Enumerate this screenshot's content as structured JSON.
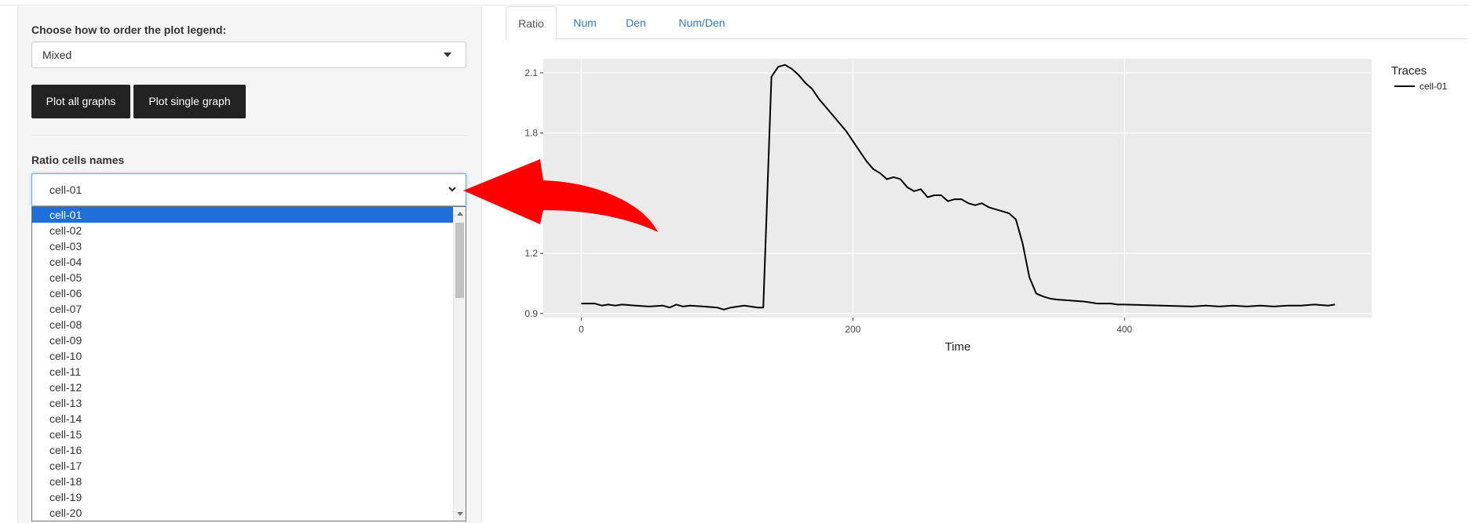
{
  "sidebar": {
    "legend_order_label": "Choose how to order the plot legend:",
    "legend_order_value": "Mixed",
    "plot_all_label": "Plot all graphs",
    "plot_single_label": "Plot single graph",
    "cells_label": "Ratio cells names",
    "cells_selected": "cell-01",
    "cells_options": [
      "cell-01",
      "cell-02",
      "cell-03",
      "cell-04",
      "cell-05",
      "cell-06",
      "cell-07",
      "cell-08",
      "cell-09",
      "cell-10",
      "cell-11",
      "cell-12",
      "cell-13",
      "cell-14",
      "cell-15",
      "cell-16",
      "cell-17",
      "cell-18",
      "cell-19",
      "cell-20"
    ]
  },
  "tabs": [
    {
      "label": "Ratio",
      "active": true
    },
    {
      "label": "Num",
      "active": false
    },
    {
      "label": "Den",
      "active": false
    },
    {
      "label": "Num/Den",
      "active": false
    }
  ],
  "annotation": {
    "arrow_color": "#ff0000",
    "icon": "red-curved-arrow-icon"
  },
  "chart_data": {
    "type": "line",
    "xlabel": "Time",
    "ylabel": "",
    "xlim": [
      -28,
      582
    ],
    "ylim": [
      0.88,
      2.17
    ],
    "xticks": [
      0,
      200,
      400
    ],
    "yticks": [
      0.9,
      1.2,
      1.8,
      2.1
    ],
    "ytick_labels": [
      "0.9",
      "1.2",
      "1.8",
      "2.1"
    ],
    "grid": true,
    "legend": {
      "title": "Traces",
      "placement": "right"
    },
    "series": [
      {
        "name": "cell-01",
        "color": "#000000",
        "x": [
          0,
          10,
          15,
          20,
          25,
          30,
          40,
          50,
          60,
          65,
          70,
          75,
          80,
          90,
          100,
          105,
          110,
          120,
          130,
          134,
          140,
          145,
          150,
          155,
          160,
          165,
          170,
          175,
          180,
          185,
          190,
          195,
          200,
          210,
          215,
          220,
          225,
          230,
          235,
          240,
          245,
          250,
          255,
          260,
          265,
          270,
          275,
          280,
          285,
          290,
          295,
          300,
          305,
          310,
          315,
          320,
          325,
          330,
          335,
          340,
          345,
          350,
          360,
          370,
          375,
          380,
          390,
          395,
          400,
          450,
          460,
          470,
          480,
          490,
          500,
          510,
          520,
          530,
          540,
          550,
          555
        ],
        "y": [
          0.95,
          0.95,
          0.94,
          0.945,
          0.94,
          0.945,
          0.94,
          0.935,
          0.94,
          0.93,
          0.945,
          0.935,
          0.94,
          0.935,
          0.93,
          0.92,
          0.93,
          0.94,
          0.93,
          0.93,
          2.08,
          2.13,
          2.14,
          2.12,
          2.09,
          2.05,
          2.02,
          1.97,
          1.93,
          1.89,
          1.85,
          1.81,
          1.76,
          1.66,
          1.62,
          1.6,
          1.57,
          1.58,
          1.57,
          1.53,
          1.51,
          1.52,
          1.48,
          1.49,
          1.49,
          1.46,
          1.47,
          1.47,
          1.45,
          1.44,
          1.45,
          1.43,
          1.42,
          1.41,
          1.4,
          1.37,
          1.25,
          1.08,
          1.0,
          0.985,
          0.975,
          0.97,
          0.965,
          0.96,
          0.955,
          0.95,
          0.95,
          0.945,
          0.945,
          0.935,
          0.94,
          0.935,
          0.94,
          0.935,
          0.94,
          0.935,
          0.94,
          0.94,
          0.945,
          0.94,
          0.945
        ]
      }
    ]
  }
}
